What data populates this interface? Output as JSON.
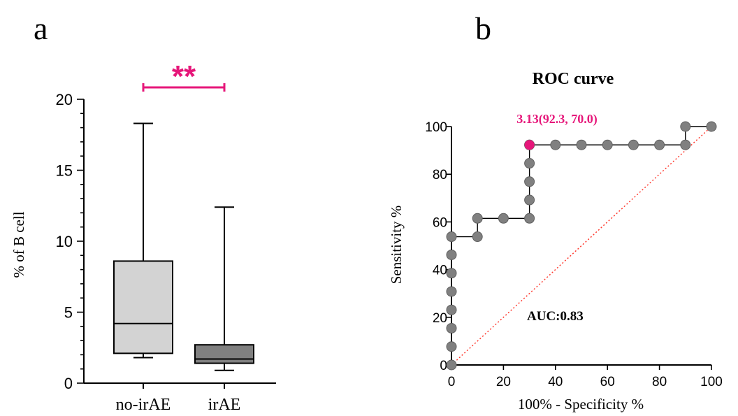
{
  "panels": {
    "a": "a",
    "b": "b"
  },
  "chart_data": [
    {
      "type": "box",
      "ylabel": "% of B cell",
      "ylim": [
        0,
        20
      ],
      "yticks": [
        0,
        5,
        10,
        15,
        20
      ],
      "categories": [
        "no-irAE",
        "irAE"
      ],
      "boxes": [
        {
          "category": "no-irAE",
          "min": 1.8,
          "q1": 2.1,
          "median": 4.2,
          "q3": 8.6,
          "max": 18.3,
          "color": "#d3d3d3"
        },
        {
          "category": "irAE",
          "min": 0.9,
          "q1": 1.4,
          "median": 1.7,
          "q3": 2.7,
          "max": 12.4,
          "color": "#808080"
        }
      ],
      "significance": {
        "label": "**",
        "between": [
          "no-irAE",
          "irAE"
        ],
        "color": "#e6177a"
      }
    },
    {
      "type": "line",
      "title": "ROC curve",
      "xlabel": "100% - Specificity %",
      "ylabel": "Sensitivity %",
      "xlim": [
        0,
        100
      ],
      "ylim": [
        0,
        100
      ],
      "xticks": [
        0,
        20,
        40,
        60,
        80,
        100
      ],
      "yticks": [
        0,
        20,
        40,
        60,
        80,
        100
      ],
      "series": [
        {
          "x": [
            0,
            0,
            0,
            0,
            0,
            0,
            0,
            0,
            10,
            10,
            20,
            30,
            30,
            30,
            30,
            30,
            30,
            40,
            50,
            60,
            70,
            80,
            90,
            90,
            100
          ],
          "y": [
            0,
            7.7,
            15.4,
            23.1,
            30.8,
            38.5,
            46.2,
            53.8,
            53.8,
            61.5,
            61.5,
            61.5,
            69.2,
            76.9,
            84.6,
            92.3,
            92.3,
            92.3,
            92.3,
            92.3,
            92.3,
            92.3,
            92.3,
            100,
            100
          ],
          "color": "#808080"
        }
      ],
      "reference_line": {
        "x": [
          0,
          100
        ],
        "y": [
          0,
          100
        ],
        "color": "#ff3b30",
        "style": "dotted"
      },
      "highlight": {
        "x": 30,
        "y": 92.3,
        "label": "3.13(92.3, 70.0)",
        "color": "#e6177a"
      },
      "annotation": "AUC:0.83"
    }
  ]
}
